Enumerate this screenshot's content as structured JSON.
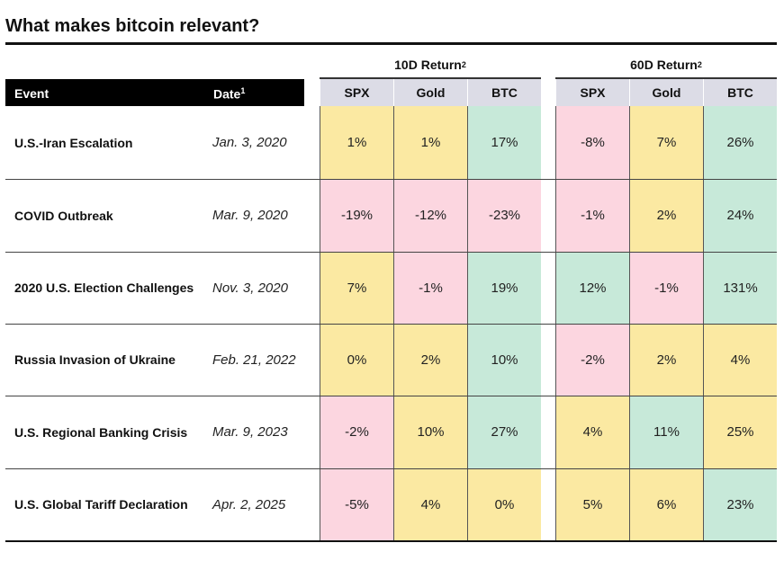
{
  "title": "What makes bitcoin relevant?",
  "palette": {
    "yellow": "#fbe9a2",
    "pink": "#fcd6e0",
    "green": "#c7e9d9",
    "header": "#dcdce6"
  },
  "table": {
    "event_header": "Event",
    "date_header": {
      "text": "Date",
      "note": "1"
    },
    "groups": [
      {
        "label": "10D Return",
        "note": "2",
        "columns": [
          "SPX",
          "Gold",
          "BTC"
        ]
      },
      {
        "label": "60D Return",
        "note": "2",
        "columns": [
          "SPX",
          "Gold",
          "BTC"
        ]
      }
    ],
    "rows": [
      {
        "event": "U.S.-Iran Escalation",
        "date": "Jan. 3, 2020",
        "values": [
          "1%",
          "1%",
          "17%",
          "-8%",
          "7%",
          "26%"
        ],
        "colors": [
          "yellow",
          "yellow",
          "green",
          "pink",
          "yellow",
          "green"
        ]
      },
      {
        "event": "COVID Outbreak",
        "date": "Mar. 9, 2020",
        "values": [
          "-19%",
          "-12%",
          "-23%",
          "-1%",
          "2%",
          "24%"
        ],
        "colors": [
          "pink",
          "pink",
          "pink",
          "pink",
          "yellow",
          "green"
        ]
      },
      {
        "event": "2020 U.S. Election Challenges",
        "date": "Nov. 3, 2020",
        "values": [
          "7%",
          "-1%",
          "19%",
          "12%",
          "-1%",
          "131%"
        ],
        "colors": [
          "yellow",
          "pink",
          "green",
          "green",
          "pink",
          "green"
        ]
      },
      {
        "event": "Russia Invasion of Ukraine",
        "date": "Feb. 21, 2022",
        "values": [
          "0%",
          "2%",
          "10%",
          "-2%",
          "2%",
          "4%"
        ],
        "colors": [
          "yellow",
          "yellow",
          "green",
          "pink",
          "yellow",
          "yellow"
        ]
      },
      {
        "event": "U.S. Regional Banking Crisis",
        "date": "Mar. 9, 2023",
        "values": [
          "-2%",
          "10%",
          "27%",
          "4%",
          "11%",
          "25%"
        ],
        "colors": [
          "pink",
          "yellow",
          "green",
          "yellow",
          "green",
          "yellow"
        ]
      },
      {
        "event": "U.S. Global Tariff Declaration",
        "date": "Apr. 2, 2025",
        "values": [
          "-5%",
          "4%",
          "0%",
          "5%",
          "6%",
          "23%"
        ],
        "colors": [
          "pink",
          "yellow",
          "yellow",
          "yellow",
          "yellow",
          "green"
        ]
      }
    ]
  }
}
